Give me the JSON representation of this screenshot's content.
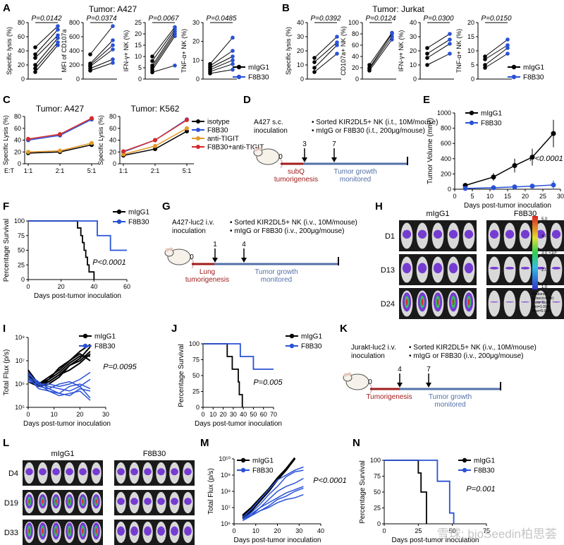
{
  "colors": {
    "black": "#000000",
    "blue": "#2a52d6",
    "red": "#d62a2a",
    "orange": "#e39a2a",
    "darkred": "#a11d1d",
    "timeline_blue": "#5470a8"
  },
  "panels": {
    "A": {
      "letter": "A",
      "title": "Tumor: A427",
      "plots": [
        {
          "ylabel": "Specific lysis (%)",
          "p": "P=0.0142",
          "yticks": [
            "0",
            "20",
            "40",
            "60",
            "80"
          ],
          "ymax": 80,
          "pre": [
            10,
            15,
            20,
            30,
            35,
            45
          ],
          "post": [
            48,
            52,
            58,
            62,
            70,
            75
          ]
        },
        {
          "ylabel": "MFI of CD107a",
          "p": "P=0.0374",
          "yticks": [
            "0",
            "200",
            "400",
            "600",
            "800"
          ],
          "ymax": 800,
          "pre": [
            120,
            150,
            180,
            200,
            220,
            350
          ],
          "post": [
            230,
            280,
            420,
            480,
            550,
            750
          ]
        },
        {
          "ylabel": "IFN-γ+ NK (%)",
          "p": "P=0.0067",
          "yticks": [
            "0",
            "5",
            "10",
            "15",
            "20",
            "25"
          ],
          "ymax": 25,
          "pre": [
            3,
            4,
            5,
            6,
            8,
            10
          ],
          "post": [
            6,
            19,
            20,
            21,
            22,
            23
          ]
        },
        {
          "ylabel": "TNF-α+ NK (%)",
          "p": "P=0.0485",
          "yticks": [
            "0",
            "10",
            "20",
            "30"
          ],
          "ymax": 30,
          "pre": [
            3,
            4,
            5,
            6,
            7,
            8
          ],
          "post": [
            5,
            8,
            10,
            12,
            15,
            22
          ]
        }
      ],
      "legend": [
        "mIgG1",
        "F8B30"
      ]
    },
    "B": {
      "letter": "B",
      "title": "Tumor: Jurkat",
      "plots": [
        {
          "ylabel": "Specific lysis (%)",
          "p": "P=0.0392",
          "yticks": [
            "0",
            "10",
            "20",
            "30",
            "40"
          ],
          "ymax": 40,
          "pre": [
            5,
            8,
            12,
            15
          ],
          "post": [
            18,
            24,
            26,
            30
          ]
        },
        {
          "ylabel": "CD107a+ NK (%)",
          "p": "P=0.0124",
          "yticks": [
            "0",
            "20",
            "40",
            "60",
            "80",
            "100"
          ],
          "ymax": 100,
          "pre": [
            15,
            18,
            20,
            25
          ],
          "post": [
            70,
            75,
            80,
            82
          ]
        },
        {
          "ylabel": "IFN-γ+ NK (%)",
          "p": "P=0.0300",
          "yticks": [
            "0",
            "10",
            "20",
            "30",
            "40"
          ],
          "ymax": 40,
          "pre": [
            10,
            15,
            18,
            22
          ],
          "post": [
            18,
            25,
            28,
            32
          ]
        },
        {
          "ylabel": "TNF-α+ NK (%)",
          "p": "P=0.0150",
          "yticks": [
            "0",
            "5",
            "10",
            "15",
            "20"
          ],
          "ymax": 20,
          "pre": [
            4,
            5,
            7,
            8
          ],
          "post": [
            9,
            11,
            12,
            14
          ]
        }
      ],
      "legend": [
        "mIgG1",
        "F8B30"
      ]
    },
    "C": {
      "letter": "C",
      "plots": [
        {
          "title": "Tumor: A427",
          "ylabel": "Specific Lysis (%)",
          "yticks": [
            "0",
            "20",
            "40",
            "60",
            "80"
          ],
          "ymax": 80,
          "xlabels": [
            "1:1",
            "2:1",
            "5:1"
          ],
          "et": "E:T",
          "series": {
            "isotype": [
              18,
              20,
              32
            ],
            "F8B30": [
              40,
              48,
              75
            ],
            "anti-TIGIT": [
              20,
              22,
              35
            ],
            "F8B30+anti-TIGIT": [
              42,
              50,
              77
            ]
          }
        },
        {
          "title": "Tumor: K562",
          "ylabel": "Specific Lysis (%)",
          "yticks": [
            "0",
            "20",
            "40",
            "60",
            "80"
          ],
          "ymax": 80,
          "xlabels": [
            "1:1",
            "2:1",
            "5:1"
          ],
          "series": {
            "isotype": [
              14,
              25,
              55
            ],
            "F8B30": [
              20,
              40,
              75
            ],
            "anti-TIGIT": [
              16,
              30,
              60
            ],
            "F8B30+anti-TIGIT": [
              21,
              40,
              74
            ]
          }
        }
      ],
      "legend": [
        "isotype",
        "F8B30",
        "anti-TIGIT",
        "F8B30+anti-TIGIT"
      ]
    },
    "D": {
      "letter": "D",
      "inoc": [
        "A427 s.c.",
        "inoculation"
      ],
      "bullets": [
        "• Sorted KIR2DL5+ NK (i.t., 10M/mouse)",
        "• mIgG or F8B30 (i.t., 200μg/mouse)"
      ],
      "days": [
        "0",
        "3",
        "7"
      ],
      "phase1": [
        "subQ",
        "tumorigenesis"
      ],
      "phase2": [
        "Tumor growth",
        "monitored"
      ]
    },
    "E": {
      "letter": "E",
      "ylabel": "Tumor Volume (mm³)",
      "xlabel": "Days post-tumor inoculation",
      "yticks": [
        "0",
        "200",
        "400",
        "600",
        "800",
        "1000"
      ],
      "xticks": [
        "0",
        "5",
        "10",
        "15",
        "20",
        "25",
        "30"
      ],
      "p": "P<0.0001",
      "x": [
        3,
        11,
        17,
        22,
        28
      ],
      "mIgG1": [
        50,
        160,
        310,
        420,
        730
      ],
      "F8B30": [
        10,
        20,
        30,
        40,
        55
      ],
      "legend": [
        "mIgG1",
        "F8B30"
      ]
    },
    "F": {
      "letter": "F",
      "ylabel": "Percentage Survival",
      "xlabel": "Days post-tumor inoculation",
      "yticks": [
        "0",
        "25",
        "50",
        "75",
        "100"
      ],
      "xticks": [
        "0",
        "20",
        "40",
        "60"
      ],
      "p": "P<0.0001",
      "legend": [
        "mIgG1",
        "F8B30"
      ]
    },
    "G": {
      "letter": "G",
      "inoc": [
        "A427-luc2 i.v.",
        "inoculation"
      ],
      "bullets": [
        "• Sorted KIR2DL5+ NK (i.v., 10M/mouse)",
        "• mIgG or F8B30 (i.v., 200μg/mouse)"
      ],
      "days": [
        "0",
        "1",
        "4"
      ],
      "phase1": [
        "Lung",
        "tumorigenesis"
      ],
      "phase2": [
        "Tumor growth",
        "monitored"
      ]
    },
    "H": {
      "letter": "H",
      "groups": [
        "mIgG1",
        "F8B30"
      ],
      "rows": [
        "D1",
        "D13",
        "D24"
      ],
      "scale": [
        "5.0",
        "4.0",
        "3.0",
        "2.0",
        "1.0"
      ],
      "scale_unit": "×10⁶",
      "scale_caption": [
        "Radiance",
        "(p/sec/cm²/sr)",
        "Color Scale",
        "Min=1.00e⁶",
        "Max=5.00e⁶"
      ]
    },
    "I": {
      "letter": "I",
      "ylabel": "Total Flux (p/s)",
      "xlabel": "Days post-tumor inoculation",
      "yticks": [
        "10⁵",
        "10⁶",
        "10⁷",
        "10⁸"
      ],
      "xticks": [
        "0",
        "10",
        "20",
        "30"
      ],
      "p": "P=0.0095",
      "legend": [
        "mIgG1",
        "F8B30"
      ]
    },
    "J": {
      "letter": "J",
      "ylabel": "Percentage Survival",
      "xlabel": "Days post-tumor inoculation",
      "yticks": [
        "0",
        "25",
        "50",
        "75",
        "100"
      ],
      "xticks": [
        "0",
        "10",
        "20",
        "30",
        "40",
        "50",
        "60",
        "70"
      ],
      "p": "P=0.005",
      "legend": [
        "mIgG1",
        "F8B30"
      ]
    },
    "K": {
      "letter": "K",
      "inoc": [
        "Jurakt-luc2 i.v.",
        "inoculation"
      ],
      "bullets": [
        "• Sorted KIR2DL5+ NK (i.v., 10M/mouse)",
        "• mIgG or F8B30 (i.v., 200μg/mouse)"
      ],
      "days": [
        "0",
        "4",
        "7"
      ],
      "phase1": [
        "Tumorigenesis"
      ],
      "phase2": [
        "Tumor growth",
        "monitored"
      ]
    },
    "L": {
      "letter": "L",
      "groups": [
        "mIgG1",
        "F8B30"
      ],
      "rows": [
        "D4",
        "D19",
        "D33"
      ]
    },
    "M": {
      "letter": "M",
      "ylabel": "Total Flux (p/s)",
      "xlabel": "Days post-tumor inoculation",
      "yticks": [
        "10⁶",
        "10⁷",
        "10⁸",
        "10⁹",
        "10¹⁰"
      ],
      "xticks": [
        "0",
        "10",
        "20",
        "30",
        "40"
      ],
      "p": "P<0.0001",
      "legend": [
        "mIgG1",
        "F8B30"
      ]
    },
    "N": {
      "letter": "N",
      "ylabel": "Percentage Survival",
      "xlabel": "Days post-tumor inoculation",
      "yticks": [
        "0",
        "25",
        "50",
        "75",
        "100"
      ],
      "xticks": [
        "0",
        "25",
        "50",
        "75"
      ],
      "p": "P=0.001",
      "legend": [
        "mIgG1",
        "F8B30"
      ]
    }
  },
  "watermark": "雪球: bioSeedin柏思荟"
}
